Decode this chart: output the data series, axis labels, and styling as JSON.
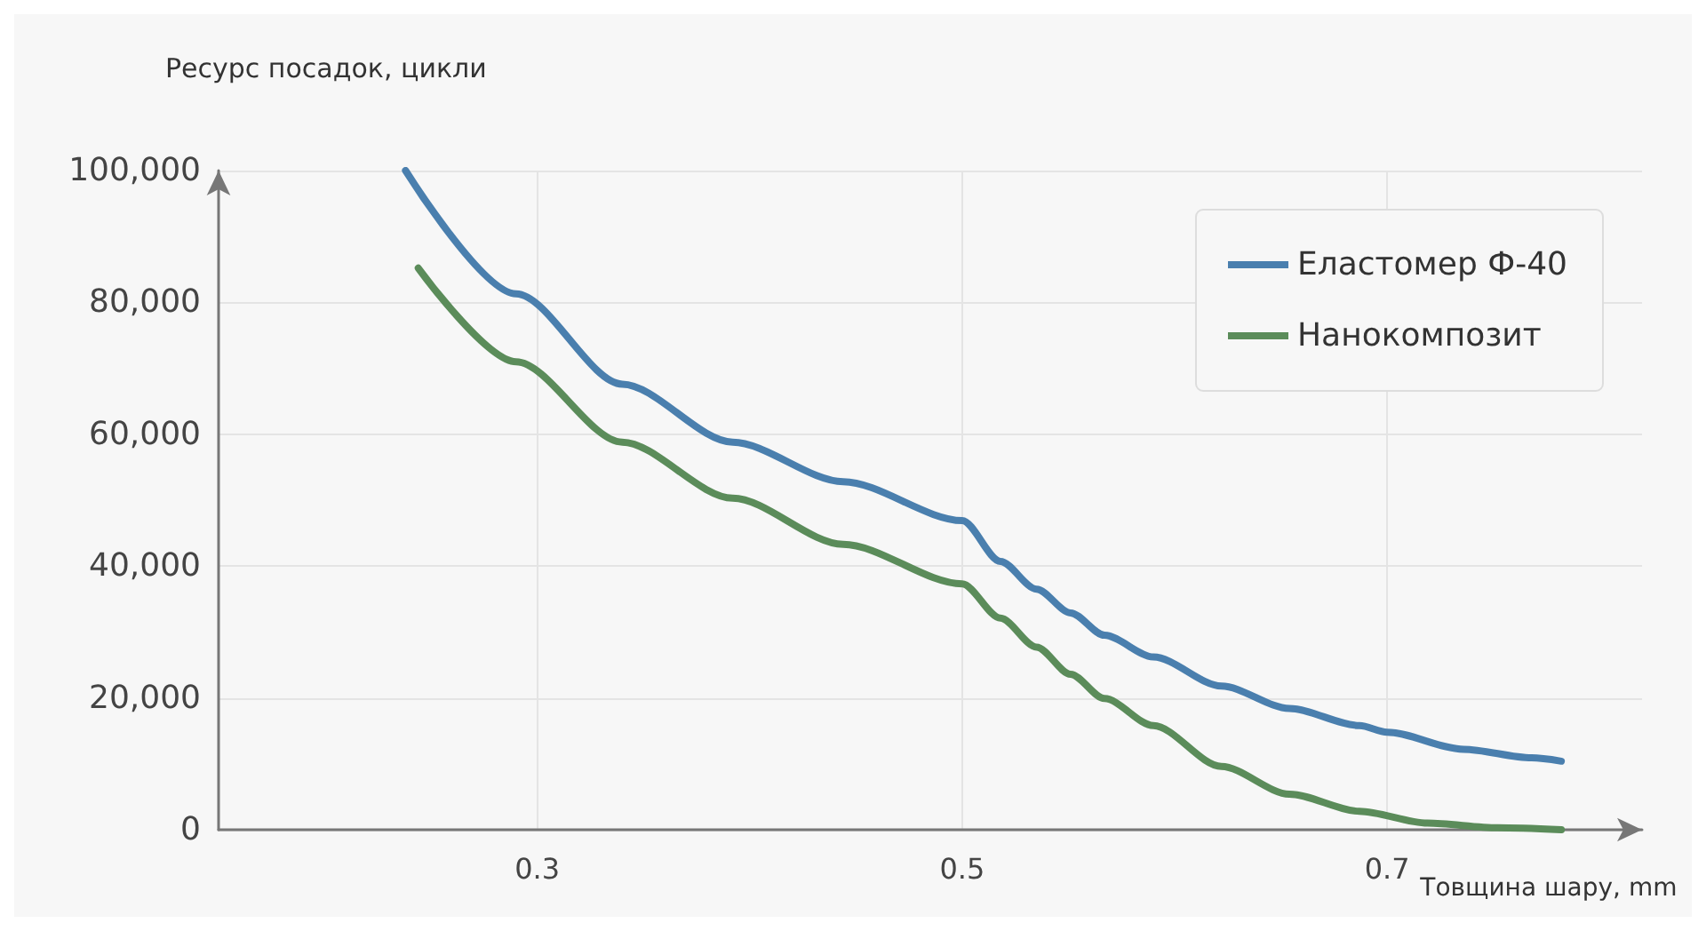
{
  "chart_data": {
    "type": "line",
    "ylabel": "Ресурс посадок, цикли",
    "xlabel": "Товщина шару, mm",
    "xlim": [
      0.15,
      0.82
    ],
    "xticks": [
      0.3,
      0.5,
      0.7
    ],
    "ylim": [
      0,
      100000
    ],
    "yticks": [
      {
        "value": 0,
        "label": "0"
      },
      {
        "value": 20000,
        "label": "20,000"
      },
      {
        "value": 40000,
        "label": "40,000"
      },
      {
        "value": 60000,
        "label": "60,000"
      },
      {
        "value": 80000,
        "label": "80,000"
      },
      {
        "value": 100000,
        "label": "100,000"
      }
    ],
    "grid": true,
    "legend": "top right",
    "marker": "none",
    "line_style": "solid",
    "series": [
      {
        "name": "Еластомер Ф-40",
        "color": "#4a7fae",
        "x": [
          0.238,
          0.29,
          0.34,
          0.392,
          0.444,
          0.5,
          0.518,
          0.535,
          0.551,
          0.567,
          0.59,
          0.622,
          0.654,
          0.687,
          0.7,
          0.736,
          0.768,
          0.782
        ],
        "values": [
          100000,
          81300,
          67600,
          58800,
          52800,
          46900,
          40700,
          36500,
          32900,
          29500,
          26200,
          21800,
          18400,
          15800,
          14800,
          12200,
          10900,
          10400
        ]
      },
      {
        "name": "Нанокомпозит",
        "color": "#5b8c5a",
        "x": [
          0.244,
          0.29,
          0.34,
          0.392,
          0.444,
          0.5,
          0.518,
          0.535,
          0.551,
          0.567,
          0.59,
          0.622,
          0.654,
          0.687,
          0.719,
          0.752,
          0.782
        ],
        "values": [
          85200,
          71000,
          58800,
          50300,
          43300,
          37300,
          32100,
          27700,
          23600,
          19900,
          15800,
          9600,
          5400,
          2800,
          1000,
          300,
          0
        ]
      }
    ]
  }
}
